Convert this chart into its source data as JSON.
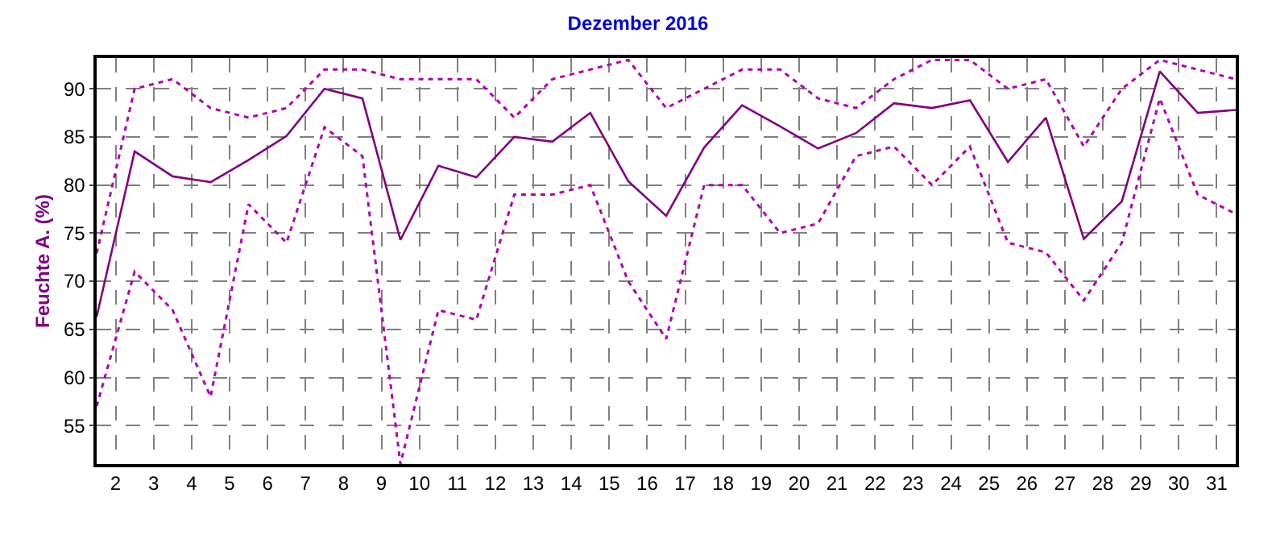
{
  "chart_data": {
    "type": "line",
    "title": "Dezember 2016",
    "ylabel": "Feuchte A. (%)",
    "x": [
      1.5,
      2.5,
      3.5,
      4.5,
      5.5,
      6.5,
      7.5,
      8.5,
      9.5,
      10.5,
      11.5,
      12.5,
      13.5,
      14.5,
      15.5,
      16.5,
      17.5,
      18.5,
      19.5,
      20.5,
      21.5,
      22.5,
      23.5,
      24.5,
      25.5,
      26.5,
      27.5,
      28.5,
      29.5,
      30.5,
      31.5
    ],
    "xlim": [
      1.5,
      31.5
    ],
    "xticks": [
      2,
      3,
      4,
      5,
      6,
      7,
      8,
      9,
      10,
      11,
      12,
      13,
      14,
      15,
      16,
      17,
      18,
      19,
      20,
      21,
      22,
      23,
      24,
      25,
      26,
      27,
      28,
      29,
      30,
      31
    ],
    "ylim": [
      51,
      93.2
    ],
    "yticks": [
      55,
      60,
      65,
      70,
      75,
      80,
      85,
      90
    ],
    "grid": true,
    "series": [
      {
        "color": "#800080",
        "line_style": "solid",
        "values": [
          66.3,
          83.5,
          80.9,
          80.3,
          82.6,
          85.1,
          90,
          89,
          74.3,
          82,
          80.8,
          85,
          84.5,
          87.5,
          80.4,
          76.8,
          83.9,
          88.3,
          86.1,
          83.8,
          85.4,
          88.5,
          88,
          88.8,
          82.4,
          87,
          74.4,
          78.3,
          91.8,
          87.5,
          87.8
        ]
      },
      {
        "color": "#b000b0",
        "line_style": "dotted",
        "values": [
          72.9,
          90,
          91,
          88,
          87,
          88,
          92,
          92,
          91,
          91,
          91,
          87,
          91,
          92,
          93,
          88,
          90,
          92,
          92,
          89,
          88,
          91,
          93,
          93,
          90,
          91,
          84,
          90,
          93,
          92,
          91
        ]
      },
      {
        "color": "#b000b0",
        "line_style": "dotted",
        "values": [
          57,
          71,
          67,
          58,
          78,
          74,
          86,
          83,
          51,
          67,
          66,
          79,
          79,
          80,
          70,
          64,
          80,
          80,
          75,
          76,
          83,
          84,
          80,
          84,
          74,
          73,
          68,
          74,
          89,
          79,
          77
        ]
      }
    ]
  }
}
